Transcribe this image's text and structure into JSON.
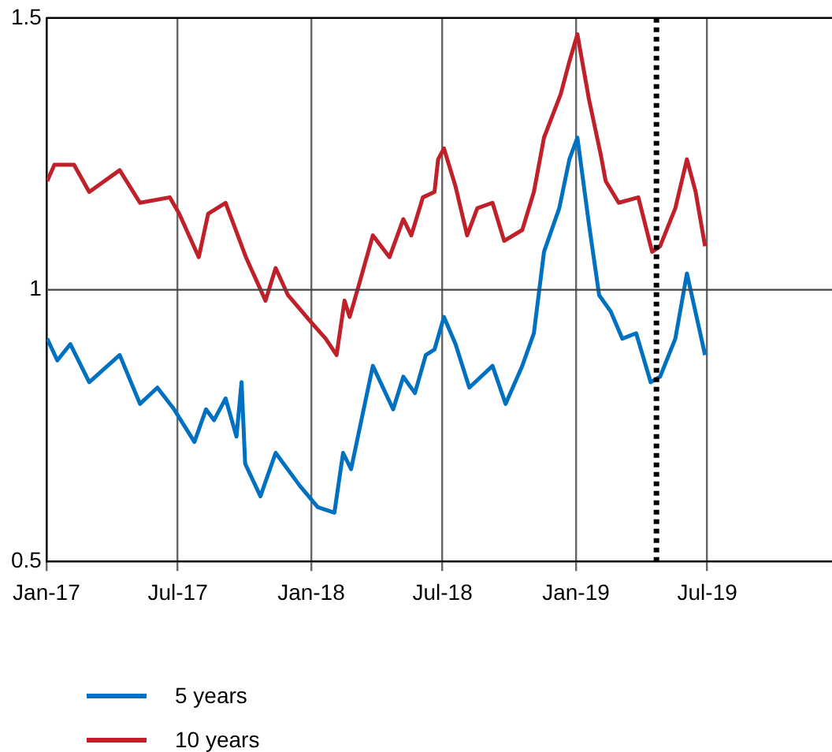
{
  "chart_data": {
    "type": "line",
    "xlim": [
      "2017-01-01",
      "2019-12-20"
    ],
    "ylim": [
      0.5,
      1.5
    ],
    "yticks": [
      0.5,
      1,
      1.5
    ],
    "xticks": [
      {
        "value": "2017-01-01",
        "label": "Jan-17"
      },
      {
        "value": "2017-07-01",
        "label": "Jul-17"
      },
      {
        "value": "2018-01-01",
        "label": "Jan-18"
      },
      {
        "value": "2018-07-01",
        "label": "Jul-18"
      },
      {
        "value": "2019-01-01",
        "label": "Jan-19"
      },
      {
        "value": "2019-07-01",
        "label": "Jul-19"
      }
    ],
    "grid": "x",
    "legend": "bottom",
    "marker": "none",
    "line_style": "solid",
    "ref_lines": [
      {
        "axis": "x",
        "value": "2019-04-22",
        "color": "#000000",
        "line_style": "dotted"
      },
      {
        "axis": "y",
        "value": 1,
        "color": "#444444",
        "line_style": "solid"
      }
    ],
    "series": [
      {
        "name": "5 years",
        "color": "#0070c0",
        "x": [
          "2017-01-02",
          "2017-01-16",
          "2017-02-03",
          "2017-03-01",
          "2017-04-12",
          "2017-05-10",
          "2017-06-03",
          "2017-06-26",
          "2017-07-24",
          "2017-08-09",
          "2017-08-20",
          "2017-09-05",
          "2017-09-20",
          "2017-09-27",
          "2017-10-02",
          "2017-10-23",
          "2017-11-13",
          "2017-12-16",
          "2018-01-10",
          "2018-02-02",
          "2018-02-14",
          "2018-02-25",
          "2018-03-08",
          "2018-03-27",
          "2018-04-24",
          "2018-05-08",
          "2018-05-24",
          "2018-06-08",
          "2018-06-20",
          "2018-07-03",
          "2018-07-19",
          "2018-08-07",
          "2018-09-08",
          "2018-09-26",
          "2018-10-19",
          "2018-11-04",
          "2018-11-18",
          "2018-12-09",
          "2018-12-23",
          "2019-01-03",
          "2019-01-19",
          "2019-02-02",
          "2019-02-18",
          "2019-03-06",
          "2019-03-25",
          "2019-04-14",
          "2019-04-27",
          "2019-05-18",
          "2019-06-03",
          "2019-06-13",
          "2019-06-28"
        ],
        "values": [
          0.91,
          0.87,
          0.9,
          0.83,
          0.88,
          0.79,
          0.82,
          0.78,
          0.72,
          0.78,
          0.76,
          0.8,
          0.73,
          0.83,
          0.68,
          0.62,
          0.7,
          0.64,
          0.6,
          0.59,
          0.7,
          0.67,
          0.74,
          0.86,
          0.78,
          0.84,
          0.81,
          0.88,
          0.89,
          0.95,
          0.9,
          0.82,
          0.86,
          0.79,
          0.86,
          0.92,
          1.07,
          1.15,
          1.24,
          1.28,
          1.12,
          0.99,
          0.96,
          0.91,
          0.92,
          0.83,
          0.84,
          0.91,
          1.03,
          0.97,
          0.88
        ]
      },
      {
        "name": "10 years",
        "color": "#c0202a",
        "x": [
          "2017-01-02",
          "2017-01-12",
          "2017-02-08",
          "2017-03-01",
          "2017-04-12",
          "2017-05-10",
          "2017-06-20",
          "2017-07-03",
          "2017-07-30",
          "2017-08-12",
          "2017-09-05",
          "2017-10-03",
          "2017-10-30",
          "2017-11-13",
          "2017-11-30",
          "2018-01-01",
          "2018-01-21",
          "2018-02-05",
          "2018-02-16",
          "2018-02-23",
          "2018-03-08",
          "2018-03-27",
          "2018-04-19",
          "2018-05-08",
          "2018-05-19",
          "2018-06-04",
          "2018-06-20",
          "2018-06-25",
          "2018-07-03",
          "2018-07-19",
          "2018-08-04",
          "2018-08-18",
          "2018-09-08",
          "2018-09-24",
          "2018-10-19",
          "2018-11-04",
          "2018-11-18",
          "2018-12-11",
          "2018-12-23",
          "2019-01-03",
          "2019-01-19",
          "2019-02-04",
          "2019-02-11",
          "2019-03-01",
          "2019-03-28",
          "2019-04-16",
          "2019-04-27",
          "2019-05-18",
          "2019-06-03",
          "2019-06-15",
          "2019-06-28"
        ],
        "values": [
          1.2,
          1.23,
          1.23,
          1.18,
          1.22,
          1.16,
          1.17,
          1.14,
          1.06,
          1.14,
          1.16,
          1.06,
          0.98,
          1.04,
          0.99,
          0.94,
          0.91,
          0.88,
          0.98,
          0.95,
          1.01,
          1.1,
          1.06,
          1.13,
          1.1,
          1.17,
          1.18,
          1.24,
          1.26,
          1.19,
          1.1,
          1.15,
          1.16,
          1.09,
          1.11,
          1.18,
          1.28,
          1.36,
          1.42,
          1.47,
          1.35,
          1.25,
          1.2,
          1.16,
          1.17,
          1.07,
          1.08,
          1.15,
          1.24,
          1.18,
          1.08
        ]
      }
    ]
  }
}
